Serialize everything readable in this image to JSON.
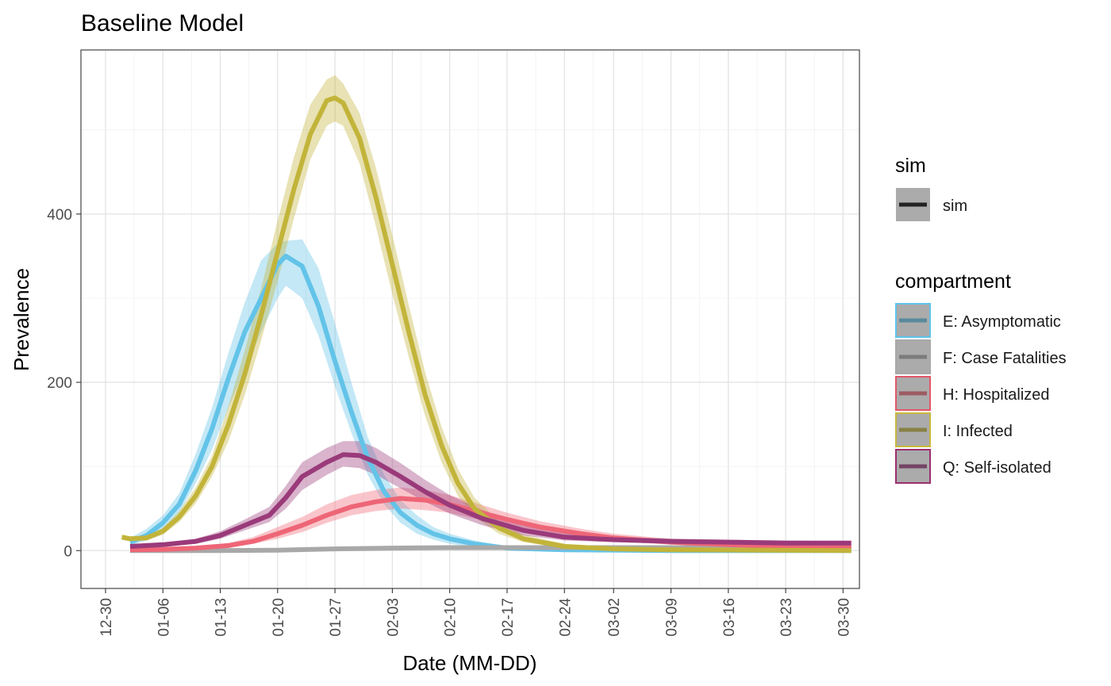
{
  "chart_data": {
    "type": "line",
    "title": "Baseline Model",
    "xlabel": "Date (MM-DD)",
    "ylabel": "Prevalence",
    "x_type": "date",
    "xlim": [
      "2020-12-27",
      "2021-04-01"
    ],
    "ylim": [
      -45,
      595
    ],
    "y_ticks": [
      0,
      200,
      400
    ],
    "x_ticks": [
      "2020-12-30",
      "2021-01-06",
      "2021-01-13",
      "2021-01-20",
      "2021-01-27",
      "2021-02-03",
      "2021-02-10",
      "2021-02-17",
      "2021-02-24",
      "2021-03-02",
      "2021-03-09",
      "2021-03-16",
      "2021-03-23",
      "2021-03-30"
    ],
    "x_tick_labels": [
      "12-30",
      "01-06",
      "01-13",
      "01-20",
      "01-27",
      "02-03",
      "02-10",
      "02-17",
      "02-24",
      "03-02",
      "03-09",
      "03-16",
      "03-23",
      "03-30"
    ],
    "grid": true,
    "legend_position": "right",
    "legend": {
      "sim_title": "sim",
      "sim_entries": [
        {
          "label": "sim",
          "color": "#222222"
        }
      ],
      "compartment_title": "compartment"
    },
    "series": [
      {
        "name": "E: Asymptomatic",
        "color": "#63c3e8",
        "border": "#5fc4ea",
        "x": [
          "2021-01-02",
          "2021-01-04",
          "2021-01-06",
          "2021-01-08",
          "2021-01-10",
          "2021-01-12",
          "2021-01-14",
          "2021-01-16",
          "2021-01-18",
          "2021-01-20",
          "2021-01-21",
          "2021-01-23",
          "2021-01-25",
          "2021-01-27",
          "2021-01-29",
          "2021-01-31",
          "2021-02-02",
          "2021-02-04",
          "2021-02-06",
          "2021-02-08",
          "2021-02-10",
          "2021-02-13",
          "2021-02-17",
          "2021-02-24",
          "2021-03-09",
          "2021-03-31"
        ],
        "y": [
          10,
          18,
          33,
          55,
          95,
          145,
          205,
          260,
          300,
          340,
          350,
          338,
          290,
          225,
          165,
          110,
          70,
          45,
          30,
          20,
          14,
          8,
          3,
          1,
          0,
          0
        ],
        "lower": [
          6,
          12,
          25,
          45,
          80,
          120,
          170,
          215,
          260,
          300,
          315,
          300,
          255,
          195,
          140,
          90,
          55,
          33,
          20,
          13,
          8,
          4,
          1,
          0,
          0,
          0
        ],
        "upper": [
          15,
          26,
          42,
          68,
          115,
          170,
          235,
          295,
          345,
          365,
          368,
          370,
          335,
          270,
          200,
          135,
          90,
          60,
          42,
          28,
          20,
          12,
          5,
          2,
          1,
          1
        ]
      },
      {
        "name": "F: Case Fatalities",
        "color": "#a8a8a8",
        "border": "#a8a8a8",
        "x": [
          "2021-01-02",
          "2021-01-13",
          "2021-01-20",
          "2021-01-27",
          "2021-02-03",
          "2021-02-10",
          "2021-02-17",
          "2021-03-02",
          "2021-03-31"
        ],
        "y": [
          0,
          0,
          0.5,
          2,
          3,
          3.5,
          3.5,
          3.5,
          3.5
        ],
        "lower": [
          0,
          0,
          0,
          1,
          2,
          2.5,
          2.5,
          2.5,
          2.5
        ],
        "upper": [
          1,
          1,
          1.5,
          3,
          4.5,
          5,
          5,
          5,
          5
        ]
      },
      {
        "name": "H: Hospitalized",
        "color": "#ee6677",
        "border": "#e3566a",
        "x": [
          "2021-01-02",
          "2021-01-06",
          "2021-01-10",
          "2021-01-14",
          "2021-01-17",
          "2021-01-20",
          "2021-01-23",
          "2021-01-26",
          "2021-01-29",
          "2021-02-01",
          "2021-02-04",
          "2021-02-07",
          "2021-02-10",
          "2021-02-13",
          "2021-02-17",
          "2021-02-21",
          "2021-02-26",
          "2021-03-02",
          "2021-03-09",
          "2021-03-16",
          "2021-03-23",
          "2021-03-31"
        ],
        "y": [
          1,
          1.5,
          3,
          6,
          11,
          20,
          30,
          42,
          52,
          58,
          62,
          60,
          55,
          47,
          37,
          28,
          20,
          15,
          10,
          7,
          5,
          4
        ],
        "lower": [
          0,
          1,
          2,
          4,
          8,
          14,
          22,
          33,
          42,
          47,
          50,
          48,
          45,
          38,
          30,
          22,
          15,
          11,
          7,
          5,
          3,
          3
        ],
        "upper": [
          2,
          3,
          5,
          9,
          16,
          28,
          40,
          55,
          66,
          72,
          75,
          72,
          66,
          57,
          45,
          35,
          26,
          20,
          14,
          10,
          8,
          6
        ]
      },
      {
        "name": "I: Infected",
        "color": "#c2b43a",
        "border": "#c9b93e",
        "x": [
          "2021-01-01",
          "2021-01-02",
          "2021-01-04",
          "2021-01-06",
          "2021-01-08",
          "2021-01-10",
          "2021-01-12",
          "2021-01-14",
          "2021-01-16",
          "2021-01-18",
          "2021-01-20",
          "2021-01-22",
          "2021-01-24",
          "2021-01-26",
          "2021-01-27",
          "2021-01-28",
          "2021-01-30",
          "2021-02-01",
          "2021-02-03",
          "2021-02-05",
          "2021-02-07",
          "2021-02-09",
          "2021-02-11",
          "2021-02-13",
          "2021-02-16",
          "2021-02-19",
          "2021-02-24",
          "2021-03-02",
          "2021-03-09",
          "2021-03-31"
        ],
        "y": [
          16,
          14,
          15,
          23,
          40,
          65,
          100,
          150,
          210,
          280,
          355,
          430,
          495,
          535,
          538,
          532,
          490,
          420,
          340,
          260,
          185,
          125,
          80,
          50,
          27,
          14,
          5,
          2,
          1,
          0
        ],
        "lower": [
          13,
          11,
          12,
          19,
          34,
          56,
          88,
          130,
          185,
          250,
          320,
          395,
          465,
          505,
          510,
          505,
          460,
          385,
          305,
          230,
          160,
          105,
          65,
          40,
          20,
          10,
          3,
          1,
          0,
          0
        ],
        "upper": [
          19,
          17,
          18,
          27,
          47,
          75,
          113,
          172,
          238,
          312,
          392,
          468,
          530,
          560,
          565,
          555,
          520,
          455,
          375,
          292,
          212,
          147,
          97,
          63,
          35,
          19,
          8,
          4,
          2,
          1
        ]
      },
      {
        "name": "Q: Self-isolated",
        "color": "#9a3a7a",
        "border": "#9c2f6f",
        "x": [
          "2021-01-02",
          "2021-01-06",
          "2021-01-10",
          "2021-01-13",
          "2021-01-16",
          "2021-01-19",
          "2021-01-21",
          "2021-01-23",
          "2021-01-26",
          "2021-01-28",
          "2021-01-30",
          "2021-02-01",
          "2021-02-04",
          "2021-02-07",
          "2021-02-10",
          "2021-02-14",
          "2021-02-19",
          "2021-02-24",
          "2021-03-02",
          "2021-03-09",
          "2021-03-16",
          "2021-03-23",
          "2021-03-31"
        ],
        "y": [
          5,
          7,
          11,
          18,
          30,
          42,
          63,
          88,
          105,
          114,
          113,
          105,
          88,
          70,
          54,
          38,
          24,
          16,
          13,
          11,
          10,
          9,
          9
        ],
        "lower": [
          3,
          5,
          8,
          14,
          24,
          34,
          50,
          72,
          90,
          100,
          98,
          90,
          74,
          58,
          44,
          30,
          18,
          12,
          10,
          8,
          8,
          7,
          7
        ],
        "upper": [
          7,
          9,
          14,
          23,
          37,
          52,
          77,
          105,
          122,
          130,
          130,
          122,
          104,
          84,
          66,
          48,
          31,
          21,
          17,
          14,
          13,
          12,
          11
        ]
      }
    ]
  }
}
